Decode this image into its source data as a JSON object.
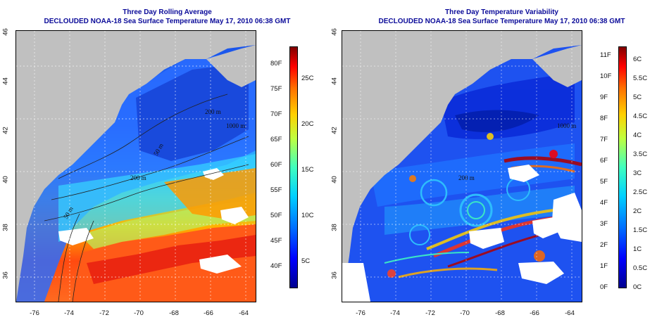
{
  "panels": [
    {
      "title": "Three Day Rolling Average",
      "subtitle": "DECLOUDED NOAA-18 Sea Surface Temperature May 17, 2010 06:38 GMT",
      "legend_fahrenheit": [
        "40F",
        "45F",
        "50F",
        "55F",
        "60F",
        "65F",
        "70F",
        "75F",
        "80F"
      ],
      "legend_celsius": [
        "5C",
        "10C",
        "15C",
        "20C",
        "25C"
      ]
    },
    {
      "title": "Three Day Temperature Variability",
      "subtitle": "DECLOUDED NOAA-18 Sea Surface Temperature May 17, 2010 06:38 GMT",
      "legend_fahrenheit": [
        "0F",
        "1F",
        "2F",
        "3F",
        "4F",
        "5F",
        "6F",
        "7F",
        "8F",
        "9F",
        "10F",
        "11F"
      ],
      "legend_celsius": [
        "0C",
        "0.5C",
        "1C",
        "1.5C",
        "2C",
        "2.5C",
        "3C",
        "3.5C",
        "4C",
        "4.5C",
        "5C",
        "5.5C",
        "6C"
      ]
    }
  ],
  "axes": {
    "lat_ticks": [
      "36",
      "38",
      "40",
      "42",
      "44",
      "46"
    ],
    "lon_ticks": [
      "-76",
      "-74",
      "-72",
      "-70",
      "-68",
      "-66",
      "-64"
    ]
  },
  "contour_labels": {
    "left": [
      "200 m",
      "1000 m",
      "50 m",
      "200 m",
      "50 m"
    ],
    "right": [
      "200 m",
      "1000 m"
    ]
  },
  "colors": {
    "title": "#0b0b99",
    "land": "#c0c0c0",
    "cloud": "#ffffff"
  }
}
